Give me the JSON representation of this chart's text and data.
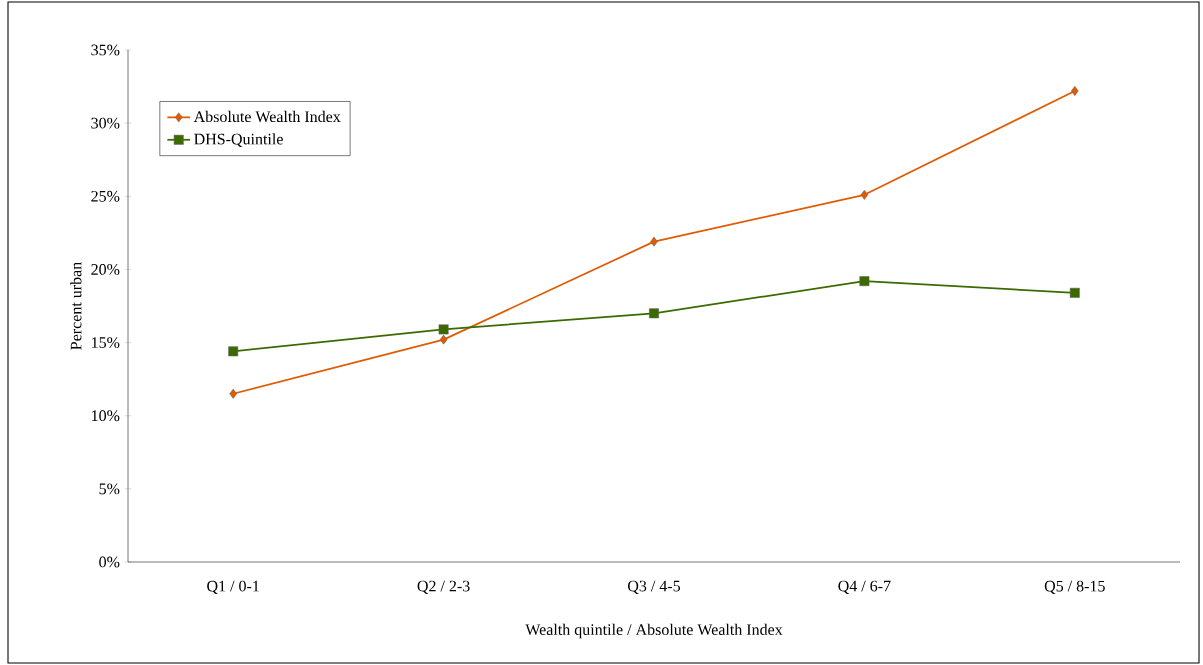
{
  "chart_data": {
    "type": "line",
    "xlabel": "Wealth quintile / Absolute Wealth Index",
    "ylabel": "Percent urban",
    "categories": [
      "Q1 / 0-1",
      "Q2 / 2-3",
      "Q3 / 4-5",
      "Q4 / 6-7",
      "Q5 / 8-15"
    ],
    "series": [
      {
        "name": "Absolute Wealth Index",
        "color": "#e05a00",
        "marker": "diamond",
        "values": [
          11.5,
          15.2,
          21.9,
          25.1,
          32.2
        ]
      },
      {
        "name": "DHS-Quintile",
        "color": "#3a6a00",
        "marker": "square",
        "values": [
          14.4,
          15.9,
          17.0,
          19.2,
          18.4
        ]
      }
    ],
    "ylim": [
      0,
      35
    ],
    "yticks": [
      {
        "value": 0,
        "label": "0%"
      },
      {
        "value": 5,
        "label": "5%"
      },
      {
        "value": 10,
        "label": "10%"
      },
      {
        "value": 15,
        "label": "15%"
      },
      {
        "value": 20,
        "label": "20%"
      },
      {
        "value": 25,
        "label": "25%"
      },
      {
        "value": 30,
        "label": "30%"
      },
      {
        "value": 35,
        "label": "35%"
      }
    ],
    "grid": false,
    "legend": "top left",
    "line_style": "solid"
  }
}
